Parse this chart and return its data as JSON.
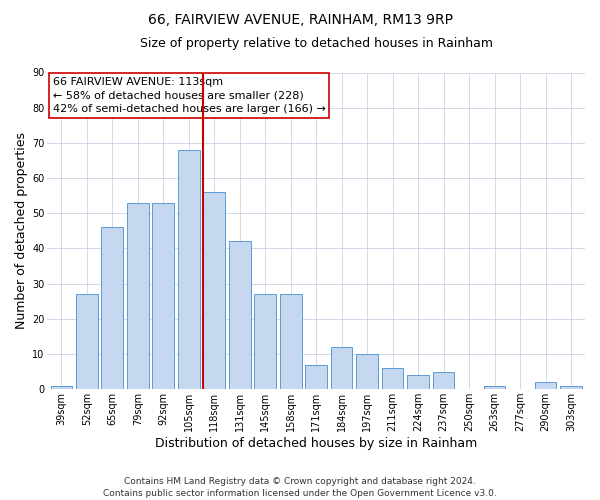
{
  "title": "66, FAIRVIEW AVENUE, RAINHAM, RM13 9RP",
  "subtitle": "Size of property relative to detached houses in Rainham",
  "xlabel": "Distribution of detached houses by size in Rainham",
  "ylabel": "Number of detached properties",
  "categories": [
    "39sqm",
    "52sqm",
    "65sqm",
    "79sqm",
    "92sqm",
    "105sqm",
    "118sqm",
    "131sqm",
    "145sqm",
    "158sqm",
    "171sqm",
    "184sqm",
    "197sqm",
    "211sqm",
    "224sqm",
    "237sqm",
    "250sqm",
    "263sqm",
    "277sqm",
    "290sqm",
    "303sqm"
  ],
  "values": [
    1,
    27,
    46,
    53,
    53,
    68,
    56,
    42,
    27,
    27,
    7,
    12,
    10,
    6,
    4,
    5,
    0,
    1,
    0,
    2,
    1
  ],
  "bar_color": "#c5d8f0",
  "bar_edgecolor": "#5b9bd5",
  "background_color": "#ffffff",
  "grid_color": "#c8d4e3",
  "vline_color": "#cc0000",
  "ylim": [
    0,
    90
  ],
  "yticks": [
    0,
    10,
    20,
    30,
    40,
    50,
    60,
    70,
    80,
    90
  ],
  "annotation_title": "66 FAIRVIEW AVENUE: 113sqm",
  "annotation_line1": "← 58% of detached houses are smaller (228)",
  "annotation_line2": "42% of semi-detached houses are larger (166) →",
  "annotation_box_edgecolor": "#cc0000",
  "footnote1": "Contains HM Land Registry data © Crown copyright and database right 2024.",
  "footnote2": "Contains public sector information licensed under the Open Government Licence v3.0.",
  "title_fontsize": 10,
  "subtitle_fontsize": 9,
  "axis_label_fontsize": 9,
  "tick_fontsize": 7,
  "annotation_fontsize": 8,
  "footnote_fontsize": 6.5
}
